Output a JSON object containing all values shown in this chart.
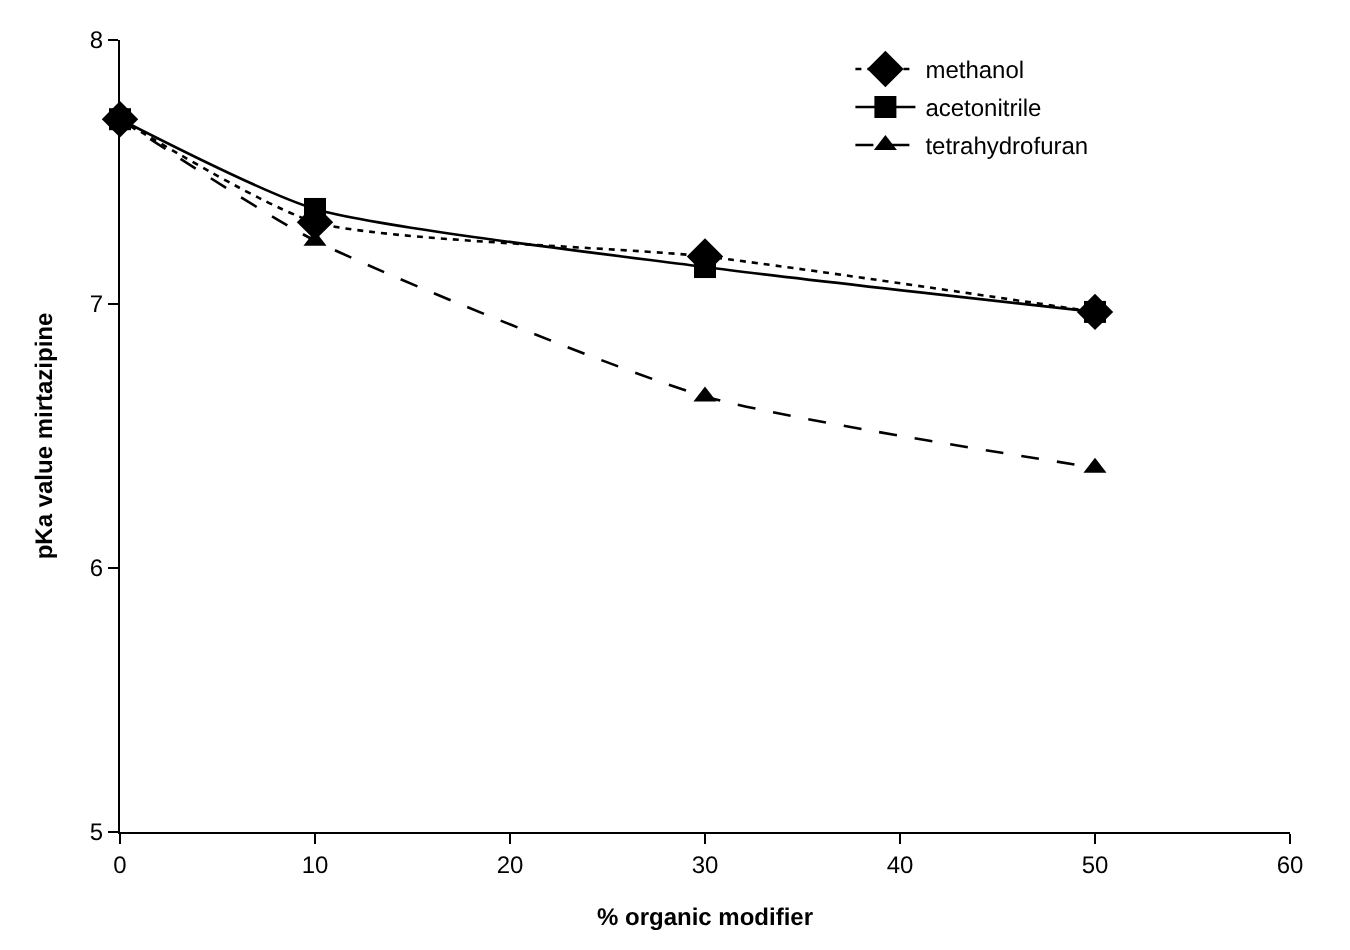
{
  "chart_data": {
    "type": "line",
    "xlabel": "% organic modifier",
    "ylabel": "pKa value mirtazipine",
    "x": [
      0,
      10,
      30,
      50
    ],
    "xlim": [
      0,
      60
    ],
    "xticks": [
      0,
      10,
      20,
      30,
      40,
      50,
      60
    ],
    "ylim": [
      5,
      8
    ],
    "yticks": [
      5,
      6,
      7,
      8
    ],
    "grid": false,
    "legend": "top right",
    "series": [
      {
        "name": "methanol",
        "color": "#000000",
        "values": [
          7.7,
          7.31,
          7.18,
          6.97
        ],
        "marker": "diamond",
        "line_style": "dotted"
      },
      {
        "name": "acetonitrile",
        "color": "#000000",
        "values": [
          7.7,
          7.36,
          7.14,
          6.97
        ],
        "marker": "square",
        "line_style": "solid"
      },
      {
        "name": "tetrahydrofuran",
        "color": "#000000",
        "values": [
          7.7,
          7.24,
          6.65,
          6.38
        ],
        "marker": "triangle",
        "line_style": "dashed"
      }
    ]
  }
}
